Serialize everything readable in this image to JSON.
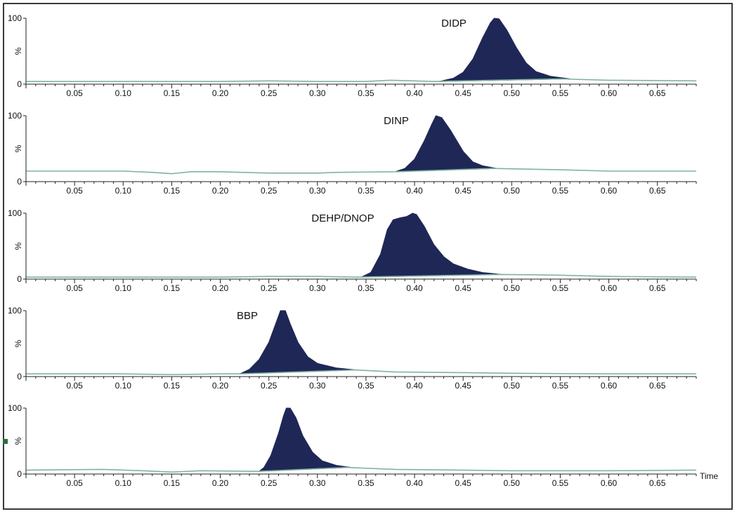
{
  "colors": {
    "peak_fill": "#1f2757",
    "baseline": "#7fb3a0",
    "axis": "#222222",
    "frame": "#3a3a3a"
  },
  "chart_data": [
    {
      "type": "area",
      "title": "",
      "peak_label": "DIDP",
      "ylabel": "%",
      "xlabel": "",
      "y_ticks": [
        "100",
        "0"
      ],
      "ylim": [
        0,
        100
      ],
      "xlim": [
        0.0,
        0.69
      ],
      "x_ticks": [
        "0.05",
        "0.10",
        "0.15",
        "0.20",
        "0.25",
        "0.30",
        "0.35",
        "0.40",
        "0.45",
        "0.50",
        "0.55",
        "0.60",
        "0.65"
      ],
      "baseline_series": [
        [
          0.0,
          4
        ],
        [
          0.1,
          4
        ],
        [
          0.2,
          4
        ],
        [
          0.25,
          5
        ],
        [
          0.3,
          4
        ],
        [
          0.35,
          4
        ],
        [
          0.375,
          6
        ],
        [
          0.4,
          5
        ],
        [
          0.42,
          4
        ],
        [
          0.55,
          8
        ],
        [
          0.6,
          6
        ],
        [
          0.69,
          5
        ]
      ],
      "peak_series": [
        [
          0.425,
          4
        ],
        [
          0.44,
          9
        ],
        [
          0.45,
          18
        ],
        [
          0.46,
          38
        ],
        [
          0.47,
          70
        ],
        [
          0.478,
          93
        ],
        [
          0.482,
          100
        ],
        [
          0.487,
          99
        ],
        [
          0.495,
          82
        ],
        [
          0.505,
          55
        ],
        [
          0.515,
          32
        ],
        [
          0.525,
          19
        ],
        [
          0.54,
          12
        ],
        [
          0.56,
          8
        ]
      ]
    },
    {
      "type": "area",
      "title": "",
      "peak_label": "DINP",
      "ylabel": "%",
      "xlabel": "",
      "y_ticks": [
        "100",
        "0"
      ],
      "ylim": [
        0,
        100
      ],
      "xlim": [
        0.0,
        0.69
      ],
      "x_ticks": [
        "0.05",
        "0.10",
        "0.15",
        "0.20",
        "0.25",
        "0.30",
        "0.35",
        "0.40",
        "0.45",
        "0.50",
        "0.55",
        "0.60",
        "0.65"
      ],
      "baseline_series": [
        [
          0.0,
          16
        ],
        [
          0.1,
          16
        ],
        [
          0.13,
          14
        ],
        [
          0.15,
          12
        ],
        [
          0.17,
          15
        ],
        [
          0.2,
          15
        ],
        [
          0.25,
          13
        ],
        [
          0.3,
          13
        ],
        [
          0.32,
          14
        ],
        [
          0.38,
          15
        ],
        [
          0.48,
          20
        ],
        [
          0.55,
          18
        ],
        [
          0.6,
          16
        ],
        [
          0.69,
          16
        ]
      ],
      "peak_series": [
        [
          0.38,
          15
        ],
        [
          0.39,
          20
        ],
        [
          0.4,
          34
        ],
        [
          0.41,
          62
        ],
        [
          0.418,
          88
        ],
        [
          0.422,
          100
        ],
        [
          0.428,
          97
        ],
        [
          0.437,
          78
        ],
        [
          0.45,
          46
        ],
        [
          0.46,
          30
        ],
        [
          0.47,
          24
        ],
        [
          0.485,
          20
        ]
      ]
    },
    {
      "type": "area",
      "title": "",
      "peak_label": "DEHP/DNOP",
      "ylabel": "%",
      "xlabel": "",
      "y_ticks": [
        "100",
        "0"
      ],
      "ylim": [
        0,
        100
      ],
      "xlim": [
        0.0,
        0.69
      ],
      "x_ticks": [
        "0.05",
        "0.10",
        "0.15",
        "0.20",
        "0.25",
        "0.30",
        "0.35",
        "0.40",
        "0.45",
        "0.50",
        "0.55",
        "0.60",
        "0.65"
      ],
      "baseline_series": [
        [
          0.0,
          3
        ],
        [
          0.1,
          3
        ],
        [
          0.2,
          3
        ],
        [
          0.25,
          4
        ],
        [
          0.3,
          4
        ],
        [
          0.34,
          3
        ],
        [
          0.49,
          7
        ],
        [
          0.55,
          6
        ],
        [
          0.6,
          4
        ],
        [
          0.69,
          3
        ]
      ],
      "peak_series": [
        [
          0.345,
          3
        ],
        [
          0.355,
          10
        ],
        [
          0.365,
          38
        ],
        [
          0.372,
          75
        ],
        [
          0.378,
          90
        ],
        [
          0.385,
          93
        ],
        [
          0.392,
          95
        ],
        [
          0.398,
          100
        ],
        [
          0.402,
          98
        ],
        [
          0.41,
          80
        ],
        [
          0.42,
          52
        ],
        [
          0.43,
          34
        ],
        [
          0.44,
          23
        ],
        [
          0.455,
          15
        ],
        [
          0.47,
          10
        ],
        [
          0.49,
          7
        ]
      ]
    },
    {
      "type": "area",
      "title": "",
      "peak_label": "BBP",
      "ylabel": "%",
      "xlabel": "",
      "y_ticks": [
        "100",
        "0"
      ],
      "ylim": [
        0,
        100
      ],
      "xlim": [
        0.0,
        0.69
      ],
      "x_ticks": [
        "0.05",
        "0.10",
        "0.15",
        "0.20",
        "0.25",
        "0.30",
        "0.35",
        "0.40",
        "0.45",
        "0.50",
        "0.55",
        "0.60",
        "0.65"
      ],
      "baseline_series": [
        [
          0.0,
          4
        ],
        [
          0.1,
          4
        ],
        [
          0.15,
          3
        ],
        [
          0.2,
          4
        ],
        [
          0.22,
          4
        ],
        [
          0.34,
          10
        ],
        [
          0.38,
          7
        ],
        [
          0.45,
          6
        ],
        [
          0.5,
          5
        ],
        [
          0.6,
          4
        ],
        [
          0.69,
          4
        ]
      ],
      "peak_series": [
        [
          0.22,
          4
        ],
        [
          0.23,
          11
        ],
        [
          0.24,
          26
        ],
        [
          0.25,
          52
        ],
        [
          0.258,
          84
        ],
        [
          0.262,
          100
        ],
        [
          0.267,
          100
        ],
        [
          0.272,
          80
        ],
        [
          0.28,
          52
        ],
        [
          0.29,
          30
        ],
        [
          0.3,
          20
        ],
        [
          0.32,
          13
        ],
        [
          0.34,
          10
        ]
      ]
    },
    {
      "type": "area",
      "title": "",
      "peak_label": "",
      "ylabel": "%",
      "xlabel": "Time",
      "y_ticks": [
        "100",
        "0"
      ],
      "ylim": [
        0,
        100
      ],
      "xlim": [
        0.0,
        0.69
      ],
      "x_ticks": [
        "0.05",
        "0.10",
        "0.15",
        "0.20",
        "0.25",
        "0.30",
        "0.35",
        "0.40",
        "0.45",
        "0.50",
        "0.55",
        "0.60",
        "0.65"
      ],
      "baseline_series": [
        [
          0.0,
          6
        ],
        [
          0.08,
          7
        ],
        [
          0.12,
          5
        ],
        [
          0.15,
          3
        ],
        [
          0.18,
          5
        ],
        [
          0.24,
          4
        ],
        [
          0.33,
          10
        ],
        [
          0.38,
          7
        ],
        [
          0.45,
          6
        ],
        [
          0.5,
          5
        ],
        [
          0.6,
          5
        ],
        [
          0.69,
          6
        ]
      ],
      "peak_series": [
        [
          0.24,
          4
        ],
        [
          0.245,
          10
        ],
        [
          0.252,
          28
        ],
        [
          0.26,
          62
        ],
        [
          0.265,
          88
        ],
        [
          0.268,
          100
        ],
        [
          0.272,
          100
        ],
        [
          0.278,
          85
        ],
        [
          0.285,
          58
        ],
        [
          0.295,
          33
        ],
        [
          0.305,
          20
        ],
        [
          0.32,
          13
        ],
        [
          0.335,
          10
        ]
      ]
    }
  ]
}
